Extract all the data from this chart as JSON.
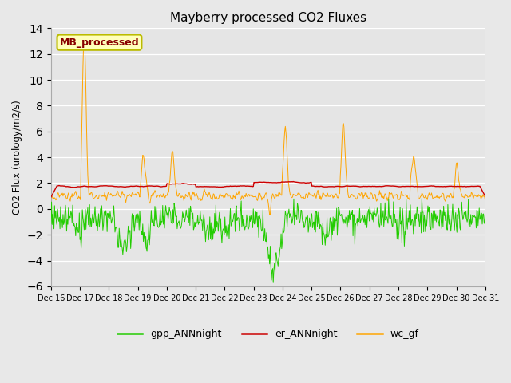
{
  "title": "Mayberry processed CO2 Fluxes",
  "ylabel": "CO2 Flux (urology/m2/s)",
  "ylim": [
    -6,
    14
  ],
  "yticks": [
    -6,
    -4,
    -2,
    0,
    2,
    4,
    6,
    8,
    10,
    12,
    14
  ],
  "bg_color": "#e8e8e8",
  "plot_bg_color": "#e5e5e5",
  "grid_color": "#ffffff",
  "legend_labels": [
    "gpp_ANNnight",
    "er_ANNnight",
    "wc_gf"
  ],
  "legend_colors": [
    "#22cc00",
    "#cc0000",
    "#ffa500"
  ],
  "label_box_facecolor": "#ffffbb",
  "label_box_edgecolor": "#bbbb00",
  "label_text": "MB_processed",
  "label_text_color": "#880000",
  "n_days": 15,
  "start_day": 16,
  "seed": 12345,
  "figwidth": 6.4,
  "figheight": 4.8,
  "dpi": 100
}
